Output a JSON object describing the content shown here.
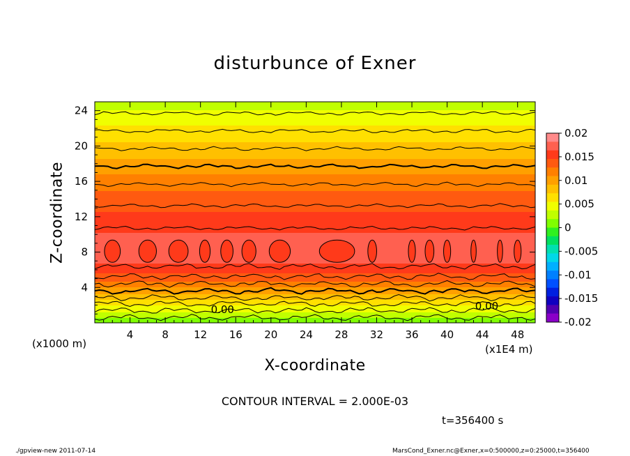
{
  "chart_data": {
    "type": "heatmap",
    "title": "disturbunce of Exner",
    "xlabel": "X-coordinate",
    "ylabel": "Z-coordinate",
    "x_unit_label": "(x1E4 m)",
    "y_unit_label": "(x1000 m)",
    "xlim": [
      0,
      50
    ],
    "ylim": [
      0,
      25
    ],
    "x_ticks": [
      4,
      8,
      12,
      16,
      20,
      24,
      28,
      32,
      36,
      40,
      44,
      48
    ],
    "y_ticks": [
      4,
      8,
      12,
      16,
      20,
      24
    ],
    "colorbar": {
      "range": [
        -0.02,
        0.02
      ],
      "ticks": [
        "0.02",
        "0.015",
        "0.01",
        "0.005",
        "0",
        "-0.005",
        "-0.01",
        "-0.015",
        "-0.02"
      ],
      "colors": [
        "#ff8a8a",
        "#ff6050",
        "#ff3a1a",
        "#ff5a10",
        "#ff8000",
        "#ffa000",
        "#ffc000",
        "#ffe000",
        "#f0ff00",
        "#c0ff00",
        "#80ff00",
        "#30f020",
        "#00e060",
        "#00e0b0",
        "#00d8e8",
        "#00b0ff",
        "#0080ff",
        "#0050ff",
        "#0020e0",
        "#1000c0",
        "#5000b0",
        "#8a00c8"
      ]
    },
    "profile": {
      "z": [
        0,
        1,
        2,
        3,
        4,
        5,
        6,
        7,
        8,
        9,
        10,
        11,
        12,
        13,
        14,
        15,
        16,
        17,
        18,
        19,
        20,
        21,
        22,
        23,
        24,
        25
      ],
      "value": [
        0.0005,
        0.003,
        0.0055,
        0.0085,
        0.011,
        0.0135,
        0.0155,
        0.0168,
        0.0175,
        0.0172,
        0.0165,
        0.0158,
        0.015,
        0.0142,
        0.0134,
        0.0126,
        0.0117,
        0.0107,
        0.0097,
        0.0087,
        0.0077,
        0.0067,
        0.0057,
        0.0047,
        0.0037,
        0.0028
      ]
    },
    "contour_labels": [
      "0.00",
      "0.00"
    ],
    "contour_interval": "CONTOUR INTERVAL = 2.000E-03",
    "time": "t=356400 s"
  },
  "footer": {
    "left": "./gpview-new   2011-07-14",
    "right": "MarsCond_Exner.nc@Exner,x=0:500000,z=0:25000,t=356400"
  }
}
